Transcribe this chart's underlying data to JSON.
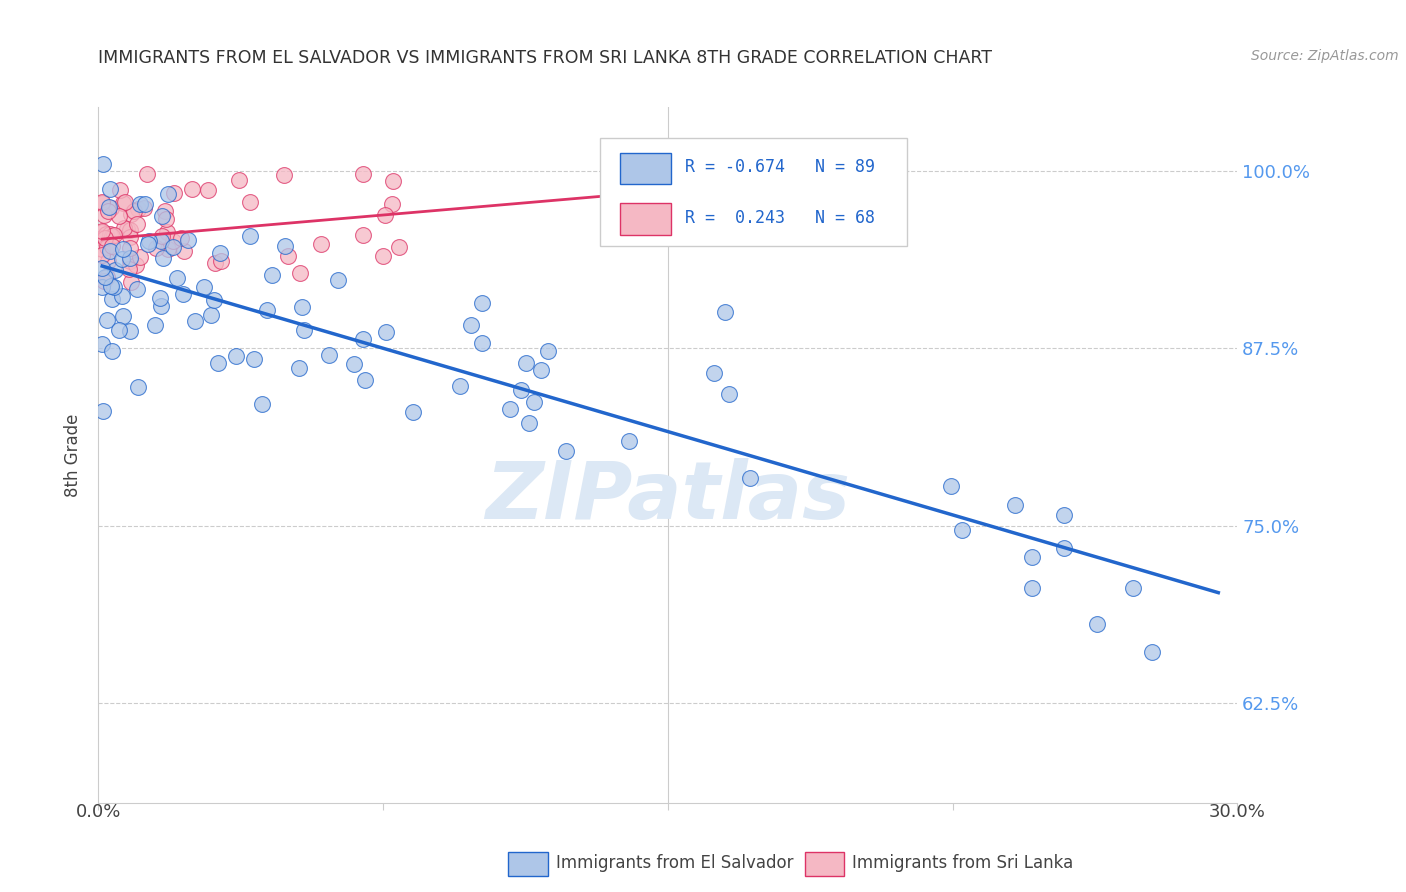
{
  "title": "IMMIGRANTS FROM EL SALVADOR VS IMMIGRANTS FROM SRI LANKA 8TH GRADE CORRELATION CHART",
  "source": "Source: ZipAtlas.com",
  "ylabel": "8th Grade",
  "yticks": [
    0.625,
    0.75,
    0.875,
    1.0
  ],
  "ytick_labels": [
    "62.5%",
    "75.0%",
    "87.5%",
    "100.0%"
  ],
  "xlim": [
    0.0,
    0.3
  ],
  "ylim": [
    0.555,
    1.045
  ],
  "color_el_salvador": "#aec6e8",
  "color_sri_lanka": "#f5b8c4",
  "line_color_el_salvador": "#2266cc",
  "line_color_sri_lanka": "#dd3366",
  "watermark_color": "#e0e8f0",
  "grid_color": "#cccccc",
  "blue_trend_x0": 0.001,
  "blue_trend_y0": 0.933,
  "blue_trend_x1": 0.295,
  "blue_trend_y1": 0.703,
  "pink_trend_x0": 0.001,
  "pink_trend_y0": 0.952,
  "pink_trend_x1": 0.145,
  "pink_trend_y1": 0.985
}
